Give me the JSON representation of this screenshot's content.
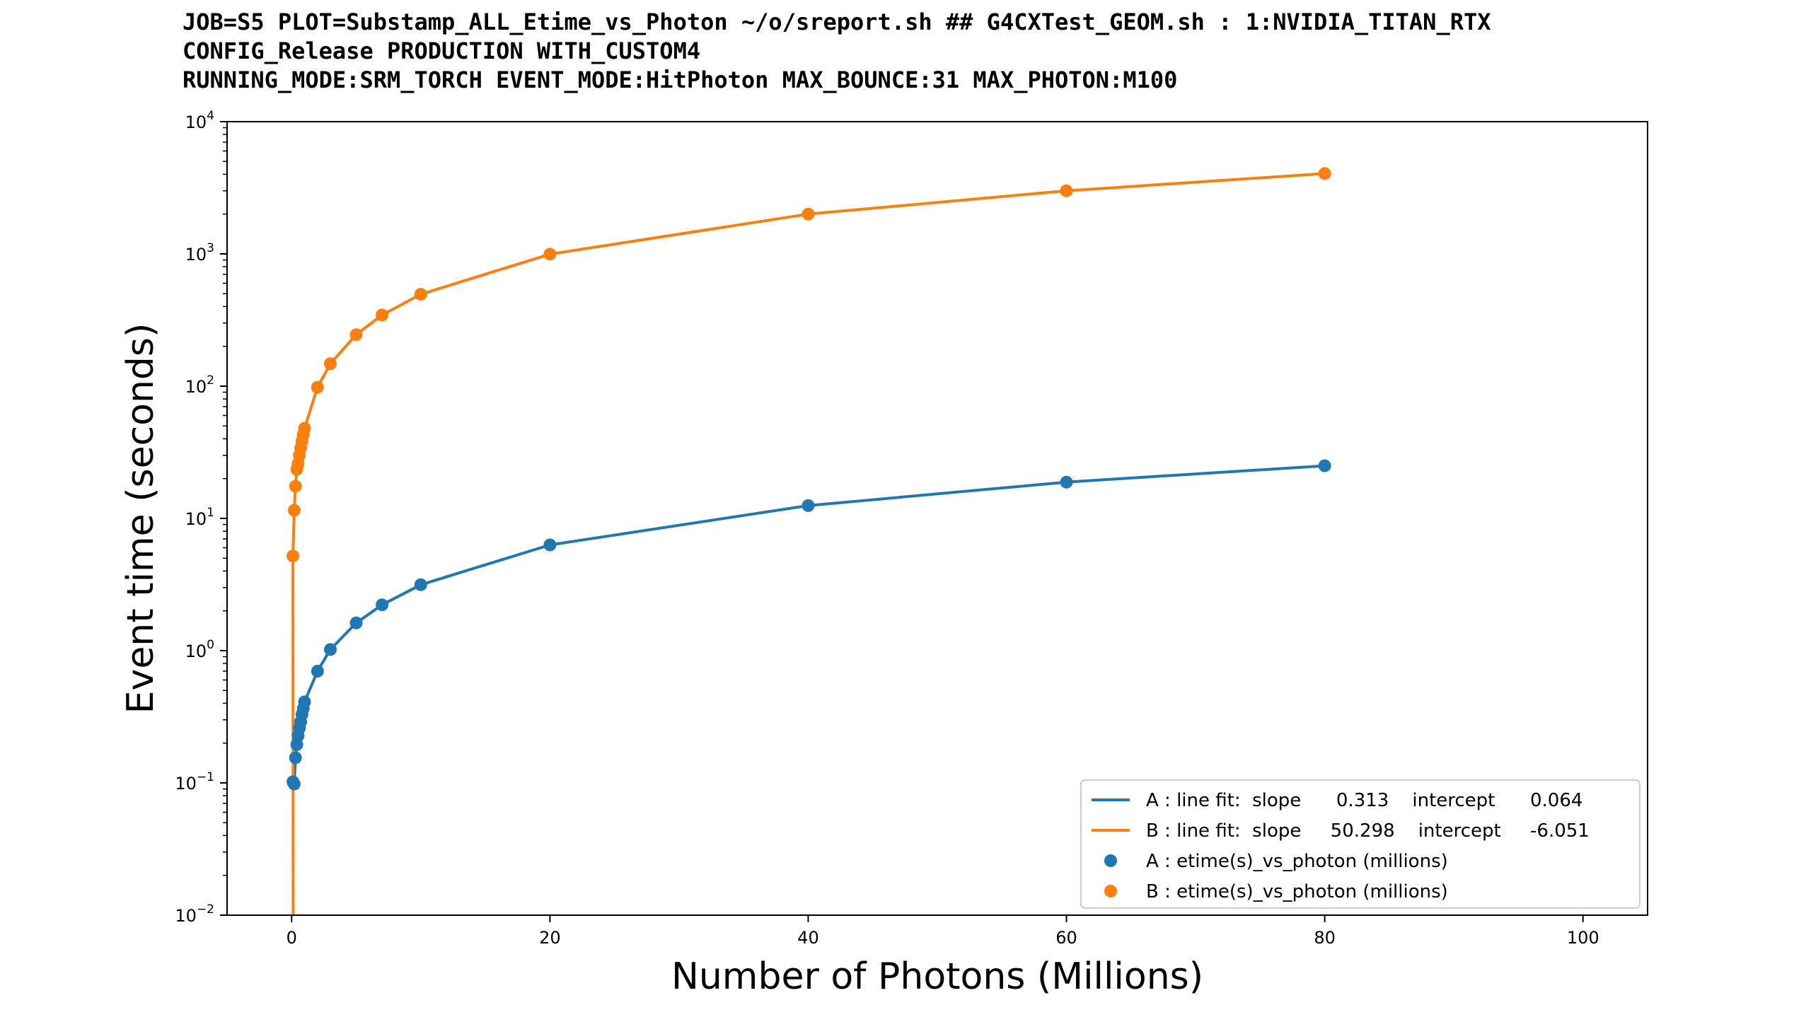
{
  "chart_data": {
    "type": "scatter",
    "title_lines": [
      "JOB=S5 PLOT=Substamp_ALL_Etime_vs_Photon ~/o/sreport.sh ## G4CXTest_GEOM.sh : 1:NVIDIA_TITAN_RTX",
      "CONFIG_Release PRODUCTION WITH_CUSTOM4",
      "RUNNING_MODE:SRM_TORCH EVENT_MODE:HitPhoton MAX_BOUNCE:31 MAX_PHOTON:M100"
    ],
    "xlabel": "Number of Photons (Millions)",
    "ylabel": "Event time (seconds)",
    "xlim": [
      -5,
      105
    ],
    "ylim": [
      0.01,
      10000
    ],
    "yscale": "log",
    "x_ticks": [
      0,
      20,
      40,
      60,
      80,
      100
    ],
    "x_tick_labels": [
      "0",
      "20",
      "40",
      "60",
      "80",
      "100"
    ],
    "y_ticks": [
      0.01,
      0.1,
      1,
      10,
      100,
      1000,
      10000
    ],
    "y_tick_labels": [
      {
        "base": "10",
        "exp": "−2"
      },
      {
        "base": "10",
        "exp": "−1"
      },
      {
        "base": "10",
        "exp": "0"
      },
      {
        "base": "10",
        "exp": "1"
      },
      {
        "base": "10",
        "exp": "2"
      },
      {
        "base": "10",
        "exp": "3"
      },
      {
        "base": "10",
        "exp": "4"
      }
    ],
    "grid": false,
    "legend_position": "lower-right",
    "series": [
      {
        "name": "A : etime(s)_vs_photon (millions)",
        "color": "#1f77b4",
        "x": [
          0.1,
          0.2,
          0.3,
          0.4,
          0.5,
          0.6,
          0.7,
          0.8,
          0.9,
          1.0,
          2,
          3,
          5,
          7,
          10,
          20,
          40,
          60,
          80
        ],
        "y": [
          0.102,
          0.098,
          0.155,
          0.195,
          0.228,
          0.26,
          0.29,
          0.33,
          0.365,
          0.41,
          0.7,
          1.02,
          1.62,
          2.22,
          3.15,
          6.3,
          12.5,
          18.8,
          25.0
        ]
      },
      {
        "name": "B : etime(s)_vs_photon (millions)",
        "color": "#ff7f0e",
        "x": [
          0.1,
          0.2,
          0.3,
          0.4,
          0.5,
          0.6,
          0.7,
          0.8,
          0.9,
          1.0,
          2,
          3,
          5,
          7,
          10,
          20,
          40,
          60,
          80
        ],
        "y": [
          5.2,
          11.5,
          17.5,
          23.5,
          26.0,
          30.0,
          34.0,
          38.5,
          43.0,
          48.0,
          98.0,
          148.0,
          245.0,
          345.0,
          495.0,
          995.0,
          2000.0,
          3000.0,
          4050.0
        ]
      }
    ],
    "fits": [
      {
        "name": "A",
        "slope": 0.313,
        "intercept": 0.064,
        "color": "#1f77b4"
      },
      {
        "name": "B",
        "slope": 50.298,
        "intercept": -6.051,
        "color": "#ff7f0e"
      }
    ],
    "legend": [
      {
        "kind": "line",
        "color": "#1f77b4",
        "text": "A : line fit:  slope      0.313    intercept      0.064"
      },
      {
        "kind": "line",
        "color": "#ff7f0e",
        "text": "B : line fit:  slope     50.298    intercept     -6.051"
      },
      {
        "kind": "marker",
        "color": "#1f77b4",
        "text": "A : etime(s)_vs_photon (millions)"
      },
      {
        "kind": "marker",
        "color": "#ff7f0e",
        "text": "B : etime(s)_vs_photon (millions)"
      }
    ]
  }
}
